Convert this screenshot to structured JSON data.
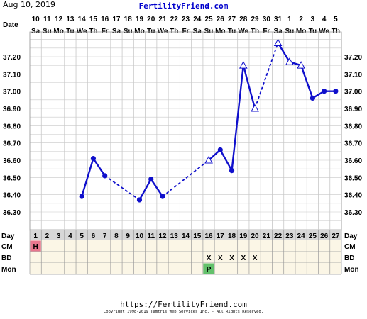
{
  "header": {
    "date": "Aug 10, 2019",
    "site": "FertilityFriend.com"
  },
  "footer": {
    "url": "https://FertilityFriend.com",
    "copyright": "Copyright 1998-2019 Tamtris Web Services Inc. - All Rights Reserved."
  },
  "colors": {
    "line": "#1010cc",
    "grid": "#c8c8c8",
    "cell_bg": "#fbf6e6",
    "day_row_bg": "#d7d7d7",
    "cm_H": "#e8778e",
    "mon_P": "#63c16b"
  },
  "chart_data": {
    "type": "line",
    "row_labels": {
      "date": "Date",
      "day": "Day",
      "cm": "CM",
      "bd": "BD",
      "mon": "Mon"
    },
    "dates": [
      "10",
      "11",
      "12",
      "13",
      "14",
      "15",
      "16",
      "17",
      "18",
      "19",
      "20",
      "21",
      "22",
      "23",
      "24",
      "25",
      "26",
      "27",
      "28",
      "29",
      "30",
      "31",
      "1",
      "2",
      "3",
      "4",
      "5"
    ],
    "weekdays": [
      "Sa",
      "Su",
      "Mo",
      "Tu",
      "We",
      "Th",
      "Fr",
      "Sa",
      "Su",
      "Mo",
      "Tu",
      "We",
      "Th",
      "Fr",
      "Sa",
      "Su",
      "Mo",
      "Tu",
      "We",
      "Th",
      "Fr",
      "Sa",
      "Su",
      "Mo",
      "Tu",
      "We",
      "Th"
    ],
    "days": [
      "1",
      "2",
      "3",
      "4",
      "5",
      "6",
      "7",
      "8",
      "9",
      "10",
      "11",
      "12",
      "13",
      "14",
      "15",
      "16",
      "17",
      "18",
      "19",
      "20",
      "21",
      "22",
      "23",
      "24",
      "25",
      "26",
      "27"
    ],
    "ylim": [
      36.2,
      37.3
    ],
    "y_ticks": [
      "37.20",
      "37.10",
      "37.00",
      "36.90",
      "36.80",
      "36.70",
      "36.60",
      "36.50",
      "36.40",
      "36.30"
    ],
    "y_tick_values": [
      37.2,
      37.1,
      37.0,
      36.9,
      36.8,
      36.7,
      36.6,
      36.5,
      36.4,
      36.3
    ],
    "temps": [
      {
        "day": 5,
        "temp": 36.39,
        "open": false
      },
      {
        "day": 6,
        "temp": 36.61,
        "open": false
      },
      {
        "day": 7,
        "temp": 36.51,
        "open": false
      },
      {
        "day": 10,
        "temp": 36.37,
        "open": false
      },
      {
        "day": 11,
        "temp": 36.49,
        "open": false
      },
      {
        "day": 12,
        "temp": 36.39,
        "open": false
      },
      {
        "day": 16,
        "temp": 36.6,
        "open": true
      },
      {
        "day": 17,
        "temp": 36.66,
        "open": false
      },
      {
        "day": 18,
        "temp": 36.54,
        "open": false
      },
      {
        "day": 19,
        "temp": 37.15,
        "open": true
      },
      {
        "day": 20,
        "temp": 36.9,
        "open": true
      },
      {
        "day": 22,
        "temp": 37.28,
        "open": true
      },
      {
        "day": 23,
        "temp": 37.17,
        "open": true
      },
      {
        "day": 24,
        "temp": 37.15,
        "open": true
      },
      {
        "day": 25,
        "temp": 36.96,
        "open": false
      },
      {
        "day": 26,
        "temp": 37.0,
        "open": false
      },
      {
        "day": 27,
        "temp": 37.0,
        "open": false
      }
    ],
    "segments": [
      {
        "from": 5,
        "to": 6,
        "style": "solid"
      },
      {
        "from": 6,
        "to": 7,
        "style": "solid"
      },
      {
        "from": 7,
        "to": 10,
        "style": "dashed"
      },
      {
        "from": 10,
        "to": 11,
        "style": "solid"
      },
      {
        "from": 11,
        "to": 12,
        "style": "solid"
      },
      {
        "from": 12,
        "to": 16,
        "style": "dashed"
      },
      {
        "from": 16,
        "to": 17,
        "style": "solid"
      },
      {
        "from": 17,
        "to": 18,
        "style": "solid"
      },
      {
        "from": 18,
        "to": 19,
        "style": "solid"
      },
      {
        "from": 19,
        "to": 20,
        "style": "solid"
      },
      {
        "from": 20,
        "to": 22,
        "style": "dashed"
      },
      {
        "from": 22,
        "to": 23,
        "style": "solid"
      },
      {
        "from": 23,
        "to": 24,
        "style": "solid"
      },
      {
        "from": 24,
        "to": 25,
        "style": "solid"
      },
      {
        "from": 25,
        "to": 26,
        "style": "solid"
      },
      {
        "from": 26,
        "to": 27,
        "style": "solid"
      }
    ],
    "cm": [
      {
        "day": 1,
        "value": "H"
      }
    ],
    "bd": [
      {
        "day": 16,
        "value": "X"
      },
      {
        "day": 17,
        "value": "X"
      },
      {
        "day": 18,
        "value": "X"
      },
      {
        "day": 19,
        "value": "X"
      },
      {
        "day": 20,
        "value": "X"
      }
    ],
    "mon": [
      {
        "day": 16,
        "value": "P"
      }
    ]
  }
}
